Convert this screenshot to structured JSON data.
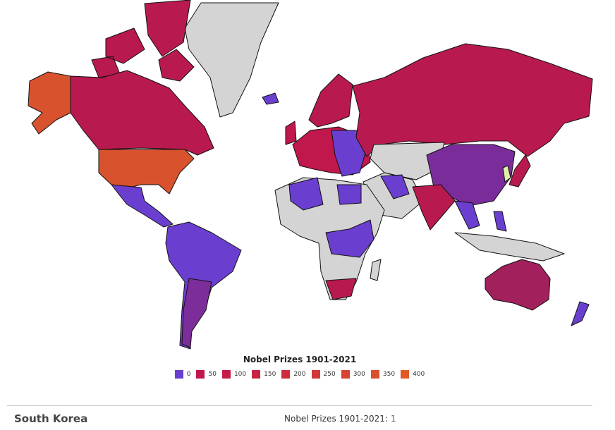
{
  "legend": {
    "title": "Nobel Prizes 1901-2021",
    "items": [
      {
        "value": 0,
        "color": "#6a3fcf"
      },
      {
        "value": 50,
        "color": "#c0174c"
      },
      {
        "value": 100,
        "color": "#c41c49"
      },
      {
        "value": 150,
        "color": "#c92344"
      },
      {
        "value": 200,
        "color": "#ce2c3e"
      },
      {
        "value": 250,
        "color": "#d23738"
      },
      {
        "value": 300,
        "color": "#d64332"
      },
      {
        "value": 350,
        "color": "#da4f2d"
      },
      {
        "value": 400,
        "color": "#df5a27"
      }
    ]
  },
  "selection": {
    "country": "South Korea",
    "label": "Nobel Prizes 1901-2021:",
    "value": 1
  }
}
